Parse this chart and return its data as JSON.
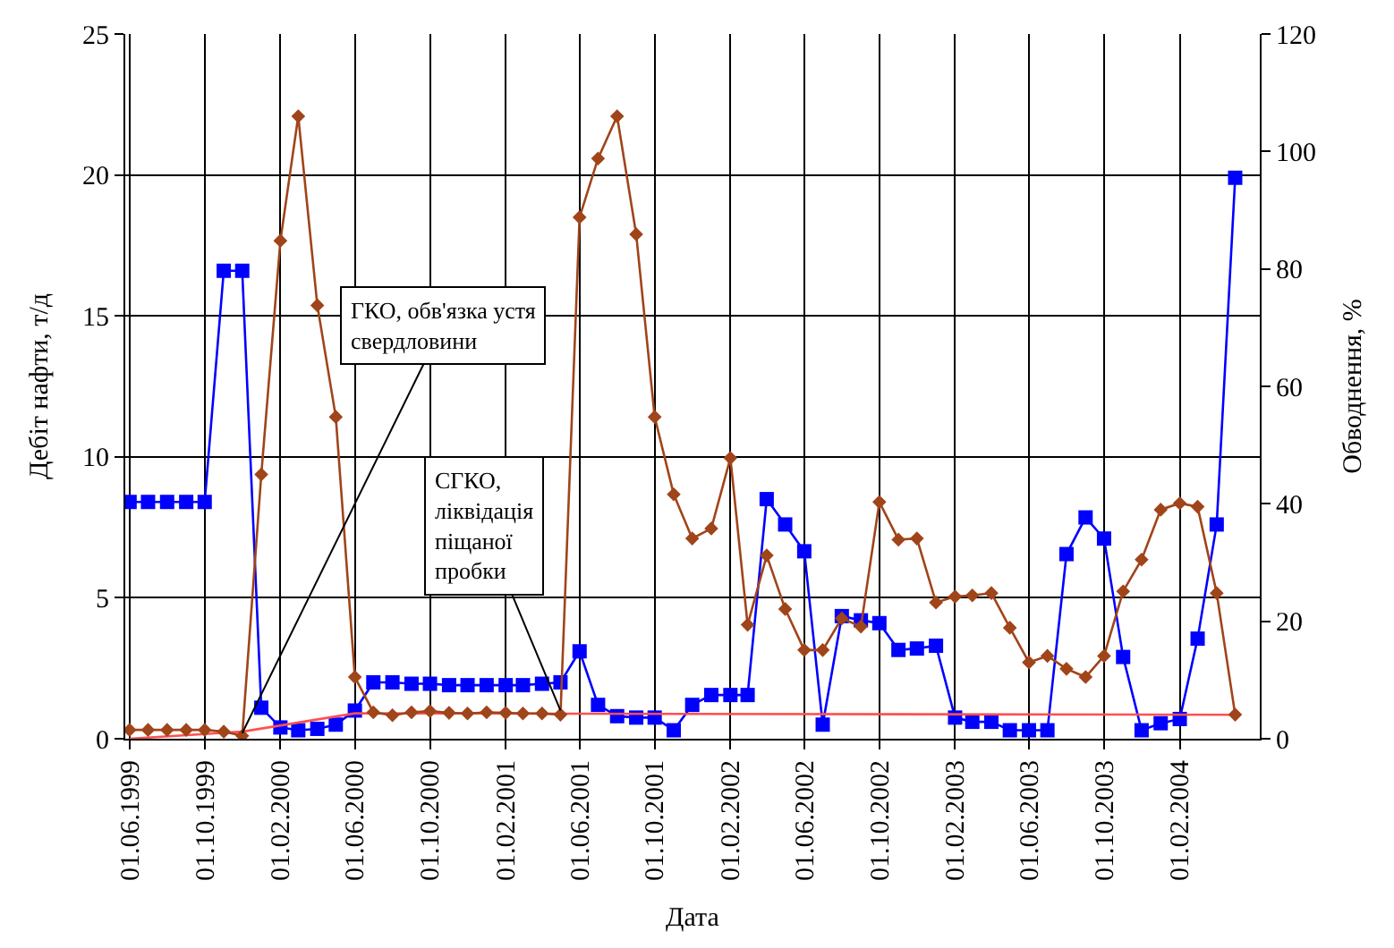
{
  "chart_data": {
    "type": "line",
    "xlabel": "Дата",
    "ylabel": "Дебіт нафти, т/д",
    "y2label": "Обводнення, %",
    "x": [
      "1999-06",
      "1999-07",
      "1999-08",
      "1999-09",
      "1999-10",
      "1999-11",
      "1999-12",
      "2000-01",
      "2000-02",
      "2000-03",
      "2000-04",
      "2000-05",
      "2000-06",
      "2000-07",
      "2000-08",
      "2000-09",
      "2000-10",
      "2000-11",
      "2000-12",
      "2001-01",
      "2001-02",
      "2001-03",
      "2001-04",
      "2001-05",
      "2001-06",
      "2001-07",
      "2001-08",
      "2001-09",
      "2001-10",
      "2001-11",
      "2001-12",
      "2002-01",
      "2002-02",
      "2002-03",
      "2002-04",
      "2002-05",
      "2002-06",
      "2002-07",
      "2002-08",
      "2002-09",
      "2002-10",
      "2002-11",
      "2002-12",
      "2003-01",
      "2003-02",
      "2003-03",
      "2003-04",
      "2003-05",
      "2003-06",
      "2003-07",
      "2003-08",
      "2003-09",
      "2003-10",
      "2003-11",
      "2003-12",
      "2004-01",
      "2004-02",
      "2004-03",
      "2004-04",
      "2004-05"
    ],
    "series": [
      {
        "color": "#0000ff",
        "marker": "square",
        "values": [
          8.4,
          8.4,
          8.4,
          8.4,
          8.4,
          16.6,
          16.6,
          1.1,
          0.4,
          0.3,
          0.35,
          0.5,
          1.0,
          2.0,
          2.0,
          1.95,
          1.95,
          1.9,
          1.9,
          1.9,
          1.9,
          1.9,
          1.95,
          2.0,
          3.1,
          1.2,
          0.8,
          0.75,
          0.75,
          0.3,
          1.2,
          1.55,
          1.55,
          1.55,
          8.5,
          7.6,
          6.65,
          0.5,
          4.35,
          4.2,
          4.1,
          3.15,
          3.2,
          3.3,
          0.75,
          0.6,
          0.6,
          0.3,
          0.3,
          0.3,
          6.55,
          7.85,
          7.1,
          2.9,
          0.3,
          0.55,
          0.7,
          3.55,
          7.6,
          19.9
        ]
      },
      {
        "color": "#a0441a",
        "marker": "diamond",
        "axis": "y2",
        "values": [
          1.5,
          1.5,
          1.5,
          1.5,
          1.5,
          1.2,
          0.5,
          45,
          84.8,
          106,
          73.8,
          54.8,
          10.5,
          4.5,
          4.0,
          4.5,
          4.7,
          4.4,
          4.3,
          4.5,
          4.4,
          4.3,
          4.3,
          4.1,
          88.8,
          98.8,
          106,
          85.9,
          54.8,
          41.6,
          34.1,
          35.8,
          47.8,
          19.4,
          31.2,
          22.1,
          15.1,
          15.1,
          20.5,
          19.1,
          40.3,
          33.9,
          34.1,
          23.2,
          24.2,
          24.4,
          24.8,
          18.9,
          13,
          14.1,
          11.9,
          10.5,
          14.1,
          25.1,
          30.5,
          39,
          40.1,
          39.5,
          24.8,
          4.1
        ]
      },
      {
        "color": "#ff5050",
        "marker": "none",
        "x": [
          "1999-06",
          "1999-12",
          "2000-06",
          "2004-05"
        ],
        "values": [
          0,
          0.25,
          0.9,
          0.85
        ]
      }
    ],
    "xlim": [
      "1999-05-25",
      "2004-06-10"
    ],
    "xticks": [
      {
        "value": "1999-06-01",
        "label": "01.06.1999"
      },
      {
        "value": "1999-10-01",
        "label": "01.10.1999"
      },
      {
        "value": "2000-02-01",
        "label": "01.02.2000"
      },
      {
        "value": "2000-06-01",
        "label": "01.06.2000"
      },
      {
        "value": "2000-10-01",
        "label": "01.10.2000"
      },
      {
        "value": "2001-02-01",
        "label": "01.02.2001"
      },
      {
        "value": "2001-06-01",
        "label": "01.06.2001"
      },
      {
        "value": "2001-10-01",
        "label": "01.10.2001"
      },
      {
        "value": "2002-02-01",
        "label": "01.02.2002"
      },
      {
        "value": "2002-06-01",
        "label": "01.06.2002"
      },
      {
        "value": "2002-10-01",
        "label": "01.10.2002"
      },
      {
        "value": "2003-02-01",
        "label": "01.02.2003"
      },
      {
        "value": "2003-06-01",
        "label": "01.06.2003"
      },
      {
        "value": "2003-10-01",
        "label": "01.10.2003"
      },
      {
        "value": "2004-02-01",
        "label": "01.02.2004"
      }
    ],
    "ylim": [
      0,
      25
    ],
    "yticks": [
      0,
      5,
      10,
      15,
      20,
      25
    ],
    "y2lim": [
      0,
      120
    ],
    "y2ticks": [
      0,
      20,
      40,
      60,
      80,
      100,
      120
    ],
    "grid": true,
    "line_style": "solid",
    "annotations": [
      {
        "text": "ГКО, обв'язка устя\nсвердловини",
        "x": "1999-12",
        "y": 0.2
      },
      {
        "text": "СГКО,\nліквідація\nпіщаної\nпробки",
        "x": "2001-05",
        "y": 1.0
      }
    ]
  }
}
